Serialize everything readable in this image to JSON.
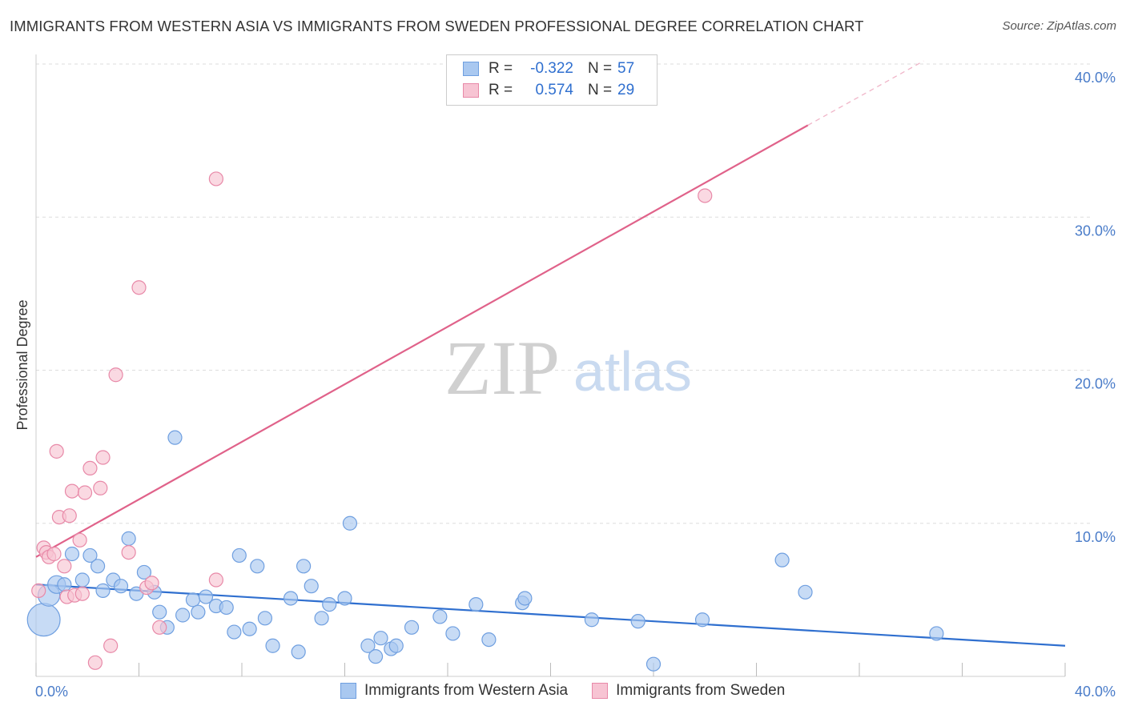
{
  "header": {
    "title": "IMMIGRANTS FROM WESTERN ASIA VS IMMIGRANTS FROM SWEDEN PROFESSIONAL DEGREE CORRELATION CHART",
    "source": "Source: ZipAtlas.com"
  },
  "watermark": {
    "zip": "ZIP",
    "atlas": "atlas"
  },
  "legend": {
    "r_label": "R =",
    "n_label": "N =",
    "rows": [
      {
        "r": "-0.322",
        "n": "57",
        "color": "#a9c8f0",
        "border": "#6f9fe0"
      },
      {
        "r": "0.574",
        "n": "29",
        "color": "#f7c4d3",
        "border": "#e889a8"
      }
    ]
  },
  "bottom_legend": [
    {
      "label": "Immigrants from Western Asia",
      "color": "#a9c8f0",
      "border": "#6f9fe0"
    },
    {
      "label": "Immigrants from Sweden",
      "color": "#f7c4d3",
      "border": "#e889a8"
    }
  ],
  "chart_data": {
    "type": "scatter",
    "ylabel": "Professional Degree",
    "xlim": [
      0,
      40
    ],
    "ylim": [
      0,
      40
    ],
    "x_ticks": [
      {
        "value": 0,
        "label": "0.0%"
      },
      {
        "value": 40,
        "label": "40.0%"
      }
    ],
    "y_ticks": [
      {
        "value": 10,
        "label": "10.0%"
      },
      {
        "value": 20,
        "label": "20.0%"
      },
      {
        "value": 30,
        "label": "30.0%"
      },
      {
        "value": 40,
        "label": "40.0%"
      }
    ],
    "grid": true,
    "legend_position": "top-center",
    "series": [
      {
        "name": "Immigrants from Western Asia",
        "color": "#a9c8f0",
        "stroke": "#6f9fe0",
        "trend": {
          "x": [
            0,
            40
          ],
          "y": [
            6.0,
            2.0
          ],
          "color": "#2f6fcf"
        },
        "points": [
          {
            "x": 0.3,
            "y": 3.7,
            "s": 2.4
          },
          {
            "x": 0.5,
            "y": 5.3,
            "s": 1.6
          },
          {
            "x": 0.8,
            "y": 6.0,
            "s": 1.3
          },
          {
            "x": 1.1,
            "y": 6.0,
            "s": 1
          },
          {
            "x": 1.4,
            "y": 8.0,
            "s": 1
          },
          {
            "x": 1.8,
            "y": 6.3,
            "s": 1
          },
          {
            "x": 2.1,
            "y": 7.9,
            "s": 1
          },
          {
            "x": 2.4,
            "y": 7.2,
            "s": 1
          },
          {
            "x": 2.6,
            "y": 5.6,
            "s": 1
          },
          {
            "x": 3.0,
            "y": 6.3,
            "s": 1
          },
          {
            "x": 3.3,
            "y": 5.9,
            "s": 1
          },
          {
            "x": 3.6,
            "y": 9.0,
            "s": 1
          },
          {
            "x": 3.9,
            "y": 5.4,
            "s": 1
          },
          {
            "x": 4.2,
            "y": 6.8,
            "s": 1
          },
          {
            "x": 4.6,
            "y": 5.5,
            "s": 1
          },
          {
            "x": 4.8,
            "y": 4.2,
            "s": 1
          },
          {
            "x": 5.1,
            "y": 3.2,
            "s": 1
          },
          {
            "x": 5.4,
            "y": 15.6,
            "s": 1
          },
          {
            "x": 5.7,
            "y": 4.0,
            "s": 1
          },
          {
            "x": 6.1,
            "y": 5.0,
            "s": 1
          },
          {
            "x": 6.3,
            "y": 4.2,
            "s": 1
          },
          {
            "x": 6.6,
            "y": 5.2,
            "s": 1
          },
          {
            "x": 7.0,
            "y": 4.6,
            "s": 1
          },
          {
            "x": 7.4,
            "y": 4.5,
            "s": 1
          },
          {
            "x": 7.7,
            "y": 2.9,
            "s": 1
          },
          {
            "x": 7.9,
            "y": 7.9,
            "s": 1
          },
          {
            "x": 8.3,
            "y": 3.1,
            "s": 1
          },
          {
            "x": 8.6,
            "y": 7.2,
            "s": 1
          },
          {
            "x": 8.9,
            "y": 3.8,
            "s": 1
          },
          {
            "x": 9.2,
            "y": 2.0,
            "s": 1
          },
          {
            "x": 9.9,
            "y": 5.1,
            "s": 1
          },
          {
            "x": 10.2,
            "y": 1.6,
            "s": 1
          },
          {
            "x": 10.4,
            "y": 7.2,
            "s": 1
          },
          {
            "x": 10.7,
            "y": 5.9,
            "s": 1
          },
          {
            "x": 11.1,
            "y": 3.8,
            "s": 1
          },
          {
            "x": 11.4,
            "y": 4.7,
            "s": 1
          },
          {
            "x": 12.0,
            "y": 5.1,
            "s": 1
          },
          {
            "x": 12.2,
            "y": 10.0,
            "s": 1
          },
          {
            "x": 12.9,
            "y": 2.0,
            "s": 1
          },
          {
            "x": 13.2,
            "y": 1.3,
            "s": 1
          },
          {
            "x": 13.4,
            "y": 2.5,
            "s": 1
          },
          {
            "x": 13.8,
            "y": 1.8,
            "s": 1
          },
          {
            "x": 14.0,
            "y": 2.0,
            "s": 1
          },
          {
            "x": 14.6,
            "y": 3.2,
            "s": 1
          },
          {
            "x": 15.7,
            "y": 3.9,
            "s": 1
          },
          {
            "x": 16.2,
            "y": 2.8,
            "s": 1
          },
          {
            "x": 17.1,
            "y": 4.7,
            "s": 1
          },
          {
            "x": 17.6,
            "y": 2.4,
            "s": 1
          },
          {
            "x": 18.9,
            "y": 4.8,
            "s": 1
          },
          {
            "x": 19.0,
            "y": 5.1,
            "s": 1
          },
          {
            "x": 21.6,
            "y": 3.7,
            "s": 1
          },
          {
            "x": 23.4,
            "y": 3.6,
            "s": 1
          },
          {
            "x": 24.0,
            "y": 0.8,
            "s": 1
          },
          {
            "x": 25.9,
            "y": 3.7,
            "s": 1
          },
          {
            "x": 29.0,
            "y": 7.6,
            "s": 1
          },
          {
            "x": 29.9,
            "y": 5.5,
            "s": 1
          },
          {
            "x": 35.0,
            "y": 2.8,
            "s": 1
          }
        ]
      },
      {
        "name": "Immigrants from Sweden",
        "color": "#f7c4d3",
        "stroke": "#e889a8",
        "trend": {
          "x": [
            0,
            30
          ],
          "y": [
            7.8,
            36.0
          ],
          "dashed_to": {
            "x": 34.5,
            "y": 40.2
          },
          "color": "#e0628a"
        },
        "points": [
          {
            "x": 0.1,
            "y": 5.6,
            "s": 1
          },
          {
            "x": 0.3,
            "y": 8.4,
            "s": 1
          },
          {
            "x": 0.4,
            "y": 8.1,
            "s": 1
          },
          {
            "x": 0.5,
            "y": 7.8,
            "s": 1
          },
          {
            "x": 0.7,
            "y": 8.0,
            "s": 1
          },
          {
            "x": 0.8,
            "y": 14.7,
            "s": 1
          },
          {
            "x": 0.9,
            "y": 10.4,
            "s": 1
          },
          {
            "x": 1.1,
            "y": 7.2,
            "s": 1
          },
          {
            "x": 1.2,
            "y": 5.2,
            "s": 1
          },
          {
            "x": 1.3,
            "y": 10.5,
            "s": 1
          },
          {
            "x": 1.4,
            "y": 12.1,
            "s": 1
          },
          {
            "x": 1.5,
            "y": 5.3,
            "s": 1
          },
          {
            "x": 1.7,
            "y": 8.9,
            "s": 1
          },
          {
            "x": 1.8,
            "y": 5.4,
            "s": 1
          },
          {
            "x": 1.9,
            "y": 12.0,
            "s": 1
          },
          {
            "x": 2.1,
            "y": 13.6,
            "s": 1
          },
          {
            "x": 2.3,
            "y": 0.9,
            "s": 1
          },
          {
            "x": 2.5,
            "y": 12.3,
            "s": 1
          },
          {
            "x": 2.6,
            "y": 14.3,
            "s": 1
          },
          {
            "x": 2.9,
            "y": 2.0,
            "s": 1
          },
          {
            "x": 3.1,
            "y": 19.7,
            "s": 1
          },
          {
            "x": 3.6,
            "y": 8.1,
            "s": 1
          },
          {
            "x": 4.0,
            "y": 25.4,
            "s": 1
          },
          {
            "x": 4.3,
            "y": 5.8,
            "s": 1
          },
          {
            "x": 4.5,
            "y": 6.1,
            "s": 1
          },
          {
            "x": 4.8,
            "y": 3.2,
            "s": 1
          },
          {
            "x": 7.0,
            "y": 6.3,
            "s": 1
          },
          {
            "x": 7.0,
            "y": 32.5,
            "s": 1
          },
          {
            "x": 26.0,
            "y": 31.4,
            "s": 1
          }
        ]
      }
    ]
  }
}
